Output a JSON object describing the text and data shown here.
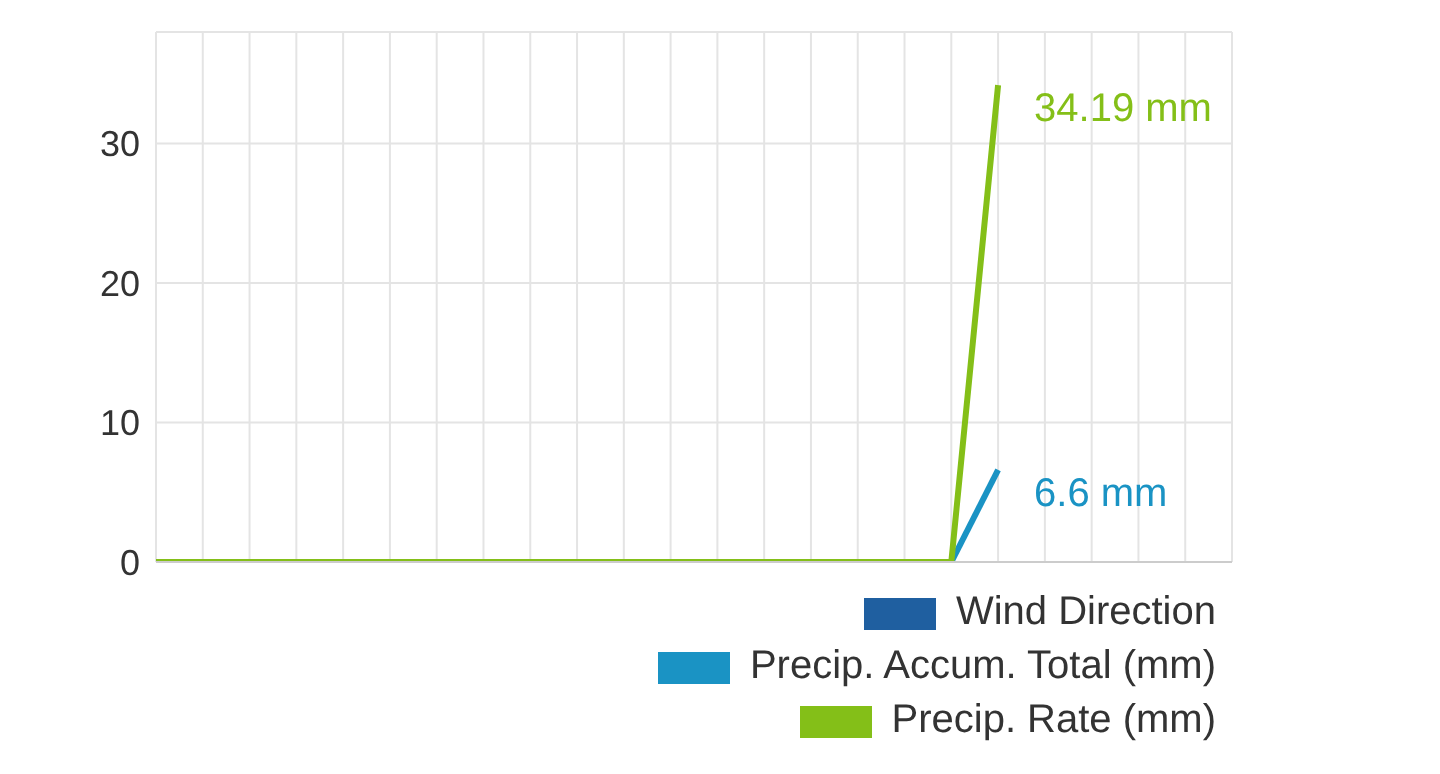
{
  "chart_data": {
    "type": "line",
    "categories": [
      null,
      null,
      null,
      null,
      null,
      null,
      null,
      null,
      null,
      null,
      null,
      null,
      null,
      null,
      null,
      null,
      null,
      null,
      null,
      null,
      null,
      null,
      null,
      null
    ],
    "series": [
      {
        "name": "Wind Direction",
        "color": "#1f5fa0",
        "values": [
          null,
          null,
          null,
          null,
          null,
          null,
          null,
          null,
          null,
          null,
          null,
          null,
          null,
          null,
          null,
          null,
          null,
          null,
          null,
          null,
          null,
          null,
          null,
          null
        ]
      },
      {
        "name": "Precip. Accum. Total (mm)",
        "color": "#1a93c4",
        "values": [
          null,
          null,
          null,
          null,
          null,
          null,
          null,
          null,
          null,
          null,
          null,
          null,
          null,
          null,
          null,
          null,
          null,
          0,
          6.6,
          null,
          null,
          null,
          null,
          null
        ],
        "value_labels": [
          null,
          null,
          null,
          null,
          null,
          null,
          null,
          null,
          null,
          null,
          null,
          null,
          null,
          null,
          null,
          null,
          null,
          null,
          "6.6 mm",
          null,
          null,
          null,
          null,
          null
        ]
      },
      {
        "name": "Precip. Rate (mm)",
        "color": "#84bf18",
        "values": [
          0,
          0,
          0,
          0,
          0,
          0,
          0,
          0,
          0,
          0,
          0,
          0,
          0,
          0,
          0,
          0,
          0,
          0,
          34.19,
          null,
          null,
          null,
          null,
          null
        ],
        "value_labels": [
          null,
          null,
          null,
          null,
          null,
          null,
          null,
          null,
          null,
          null,
          null,
          null,
          null,
          null,
          null,
          null,
          null,
          null,
          "34.19 mm",
          null,
          null,
          null,
          null,
          null
        ]
      }
    ],
    "ylim": [
      0,
      38
    ],
    "yticks": [
      0,
      10,
      20,
      30
    ],
    "grid": true,
    "legend": "bottom right",
    "marker": "none",
    "line_style": "solid"
  }
}
